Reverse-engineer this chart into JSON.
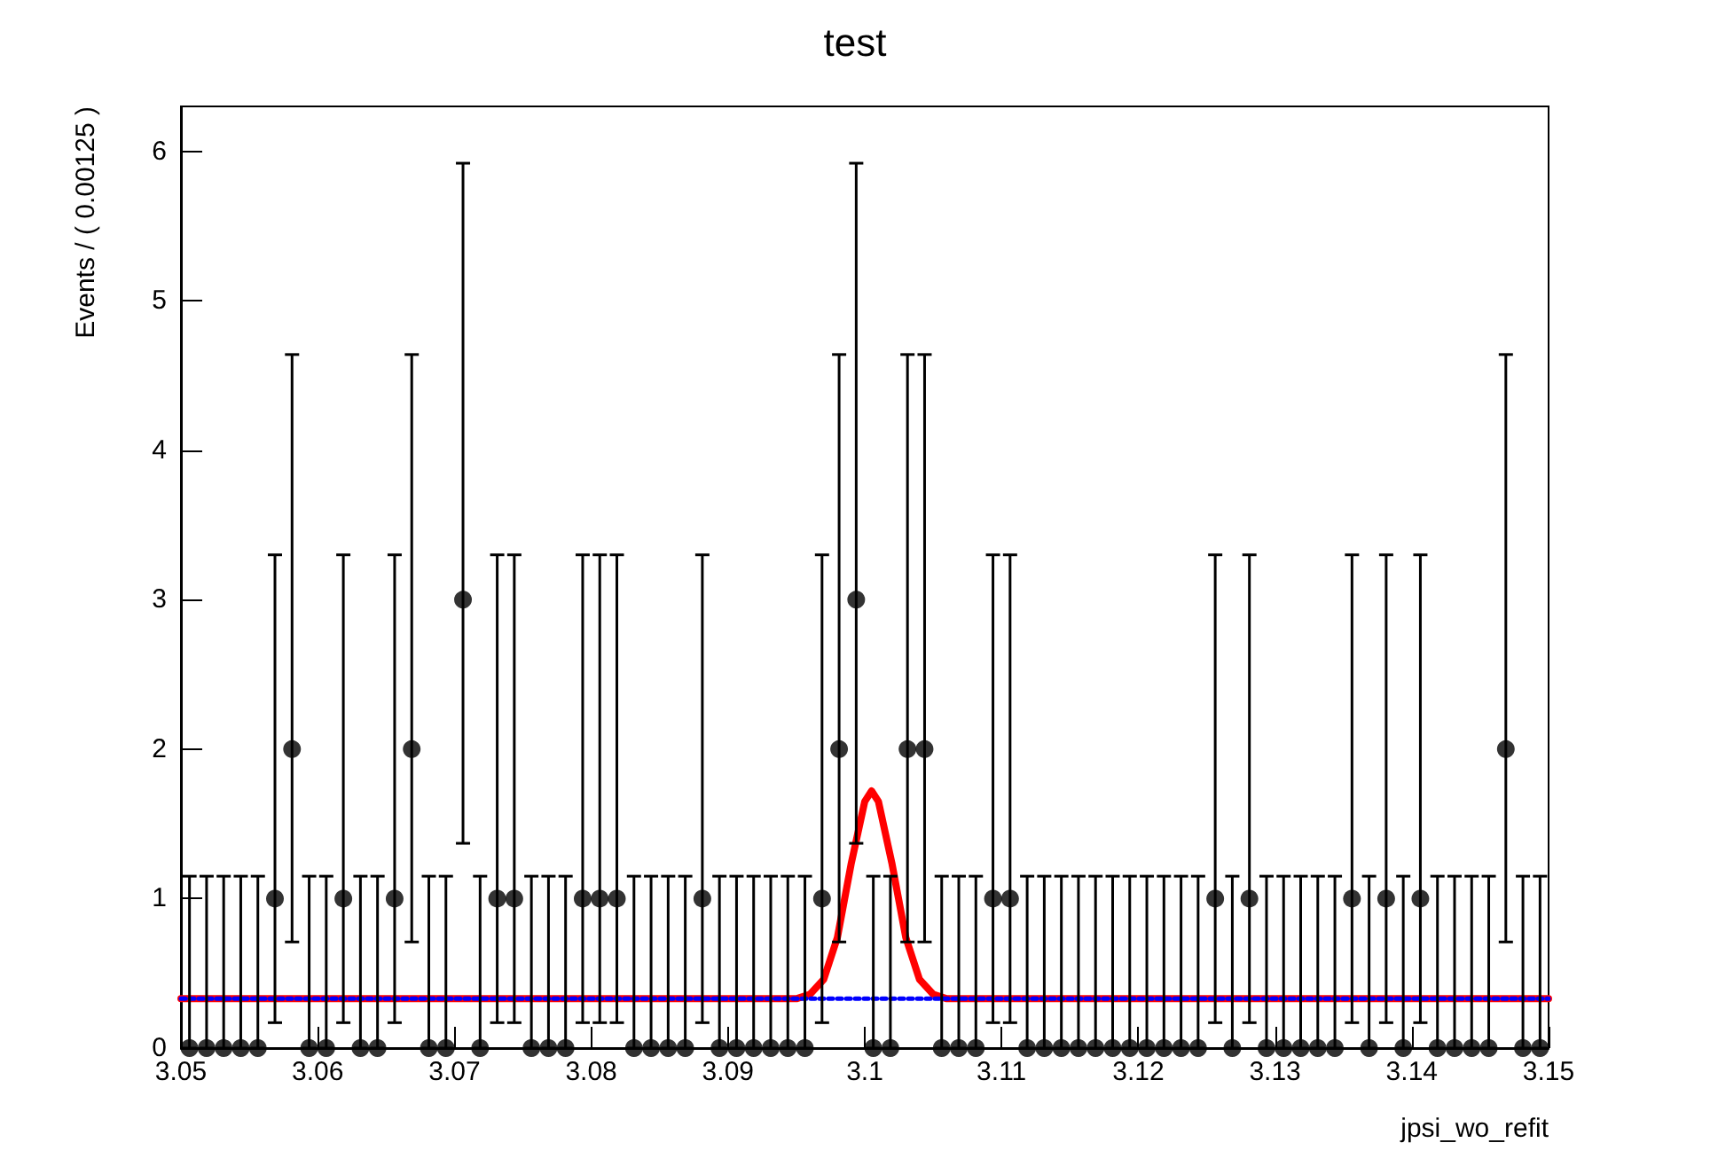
{
  "chart_data": {
    "type": "scatter",
    "title": "test",
    "xlabel": "jpsi_wo_refit",
    "ylabel": "Events / ( 0.00125 )",
    "xlim": [
      3.05,
      3.15
    ],
    "xticks": [
      3.05,
      3.06,
      3.07,
      3.08,
      3.09,
      3.1,
      3.11,
      3.12,
      3.13,
      3.14,
      3.15
    ],
    "ylim": [
      0,
      6.3
    ],
    "yticks": [
      0,
      1,
      2,
      3,
      4,
      5,
      6
    ],
    "grid": false,
    "series": [
      {
        "color": "#000000",
        "marker": "circle",
        "x": [
          3.050625,
          3.051875,
          3.053125,
          3.054375,
          3.055625,
          3.056875,
          3.058125,
          3.059375,
          3.060625,
          3.061875,
          3.063125,
          3.064375,
          3.065625,
          3.066875,
          3.068125,
          3.069375,
          3.070625,
          3.071875,
          3.073125,
          3.074375,
          3.075625,
          3.076875,
          3.078125,
          3.079375,
          3.080625,
          3.081875,
          3.083125,
          3.084375,
          3.085625,
          3.086875,
          3.088125,
          3.089375,
          3.090625,
          3.091875,
          3.093125,
          3.094375,
          3.095625,
          3.096875,
          3.098125,
          3.099375,
          3.100625,
          3.101875,
          3.103125,
          3.104375,
          3.105625,
          3.106875,
          3.108125,
          3.109375,
          3.110625,
          3.111875,
          3.113125,
          3.114375,
          3.115625,
          3.116875,
          3.118125,
          3.119375,
          3.120625,
          3.121875,
          3.123125,
          3.124375,
          3.125625,
          3.126875,
          3.128125,
          3.129375,
          3.130625,
          3.131875,
          3.133125,
          3.134375,
          3.135625,
          3.136875,
          3.138125,
          3.139375,
          3.140625,
          3.141875,
          3.143125,
          3.144375,
          3.145625,
          3.146875,
          3.148125,
          3.149375
        ],
        "values": [
          0,
          0,
          0,
          0,
          0,
          1,
          2,
          0,
          0,
          1,
          0,
          0,
          1,
          2,
          0,
          0,
          3,
          0,
          1,
          1,
          0,
          0,
          0,
          1,
          1,
          1,
          0,
          0,
          0,
          0,
          1,
          0,
          0,
          0,
          0,
          0,
          0,
          1,
          2,
          3,
          0,
          0,
          2,
          2,
          0,
          0,
          0,
          1,
          1,
          0,
          0,
          0,
          0,
          0,
          0,
          0,
          0,
          0,
          0,
          0,
          1,
          0,
          1,
          0,
          0,
          0,
          0,
          0,
          1,
          0,
          1,
          0,
          1,
          0,
          0,
          0,
          0,
          2,
          0,
          0
        ],
        "errors": [
          [
            0,
            1.15
          ],
          [
            0,
            1.15
          ],
          [
            0,
            1.15
          ],
          [
            0,
            1.15
          ],
          [
            0,
            1.15
          ],
          [
            0.17,
            3.3
          ],
          [
            0.71,
            4.64
          ],
          [
            0,
            1.15
          ],
          [
            0,
            1.15
          ],
          [
            0.17,
            3.3
          ],
          [
            0,
            1.15
          ],
          [
            0,
            1.15
          ],
          [
            0.17,
            3.3
          ],
          [
            0.71,
            4.64
          ],
          [
            0,
            1.15
          ],
          [
            0,
            1.15
          ],
          [
            1.37,
            5.92
          ],
          [
            0,
            1.15
          ],
          [
            0.17,
            3.3
          ],
          [
            0.17,
            3.3
          ],
          [
            0,
            1.15
          ],
          [
            0,
            1.15
          ],
          [
            0,
            1.15
          ],
          [
            0.17,
            3.3
          ],
          [
            0.17,
            3.3
          ],
          [
            0.17,
            3.3
          ],
          [
            0,
            1.15
          ],
          [
            0,
            1.15
          ],
          [
            0,
            1.15
          ],
          [
            0,
            1.15
          ],
          [
            0.17,
            3.3
          ],
          [
            0,
            1.15
          ],
          [
            0,
            1.15
          ],
          [
            0,
            1.15
          ],
          [
            0,
            1.15
          ],
          [
            0,
            1.15
          ],
          [
            0,
            1.15
          ],
          [
            0.17,
            3.3
          ],
          [
            0.71,
            4.64
          ],
          [
            1.37,
            5.92
          ],
          [
            0,
            1.15
          ],
          [
            0,
            1.15
          ],
          [
            0.71,
            4.64
          ],
          [
            0.71,
            4.64
          ],
          [
            0,
            1.15
          ],
          [
            0,
            1.15
          ],
          [
            0,
            1.15
          ],
          [
            0.17,
            3.3
          ],
          [
            0.17,
            3.3
          ],
          [
            0,
            1.15
          ],
          [
            0,
            1.15
          ],
          [
            0,
            1.15
          ],
          [
            0,
            1.15
          ],
          [
            0,
            1.15
          ],
          [
            0,
            1.15
          ],
          [
            0,
            1.15
          ],
          [
            0,
            1.15
          ],
          [
            0,
            1.15
          ],
          [
            0,
            1.15
          ],
          [
            0,
            1.15
          ],
          [
            0.17,
            3.3
          ],
          [
            0,
            1.15
          ],
          [
            0.17,
            3.3
          ],
          [
            0,
            1.15
          ],
          [
            0,
            1.15
          ],
          [
            0,
            1.15
          ],
          [
            0,
            1.15
          ],
          [
            0,
            1.15
          ],
          [
            0.17,
            3.3
          ],
          [
            0,
            1.15
          ],
          [
            0.17,
            3.3
          ],
          [
            0,
            1.15
          ],
          [
            0.17,
            3.3
          ],
          [
            0,
            1.15
          ],
          [
            0,
            1.15
          ],
          [
            0,
            1.15
          ],
          [
            0,
            1.15
          ],
          [
            0.71,
            4.64
          ],
          [
            0,
            1.15
          ],
          [
            0,
            1.15
          ]
        ]
      },
      {
        "type": "line",
        "color": "#ff0000",
        "line_style": "solid",
        "marker": "none",
        "x": [
          3.05,
          3.095,
          3.096,
          3.097,
          3.098,
          3.099,
          3.1,
          3.1005,
          3.101,
          3.102,
          3.103,
          3.104,
          3.105,
          3.106,
          3.15
        ],
        "values": [
          0.33,
          0.33,
          0.36,
          0.46,
          0.74,
          1.23,
          1.65,
          1.72,
          1.65,
          1.23,
          0.74,
          0.46,
          0.36,
          0.33,
          0.33
        ]
      },
      {
        "type": "line",
        "color": "#0000ff",
        "line_style": "dotted",
        "marker": "none",
        "x": [
          3.05,
          3.15
        ],
        "values": [
          0.33,
          0.33
        ]
      }
    ]
  }
}
